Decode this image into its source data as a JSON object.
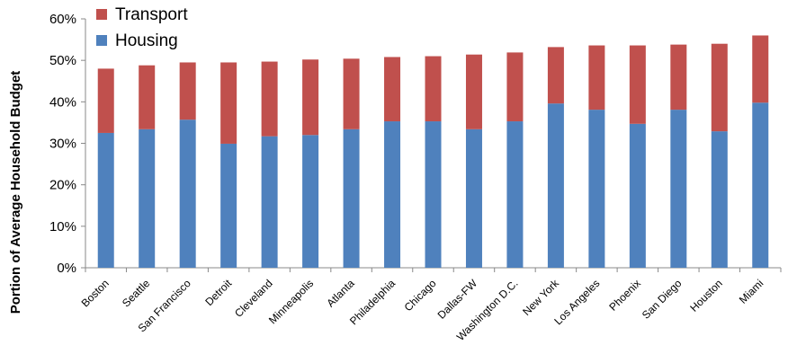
{
  "chart_data": {
    "type": "bar",
    "stacked": true,
    "title": "",
    "xlabel": "",
    "ylabel": "Portion of Average Household Budget",
    "ylim": [
      0,
      60
    ],
    "yticks": [
      "0%",
      "10%",
      "20%",
      "30%",
      "40%",
      "50%",
      "60%"
    ],
    "yticks_values": [
      0,
      10,
      20,
      30,
      40,
      50,
      60
    ],
    "grid": false,
    "legend_position": "top-left",
    "categories": [
      "Boston",
      "Seattle",
      "San Francisco",
      "Detroit",
      "Cleveland",
      "Minneapolis",
      "Atlanta",
      "Philadelphia",
      "Chicago",
      "Dallas-FW",
      "Washington D.C.",
      "New York",
      "Los Angeles",
      "Phoenix",
      "San Diego",
      "Houston",
      "Miami"
    ],
    "series": [
      {
        "name": "Housing",
        "color": "#4f81bd",
        "values": [
          32.5,
          33.4,
          35.7,
          29.9,
          31.7,
          32.0,
          33.4,
          35.3,
          35.3,
          33.4,
          35.3,
          39.6,
          38.1,
          34.7,
          38.1,
          32.9,
          39.8
        ]
      },
      {
        "name": "Transport",
        "color": "#c0504d",
        "values": [
          15.5,
          15.4,
          13.8,
          19.6,
          18.0,
          18.2,
          17.0,
          15.5,
          15.7,
          18.0,
          16.6,
          13.6,
          15.5,
          18.9,
          15.7,
          21.1,
          16.2
        ]
      }
    ]
  }
}
